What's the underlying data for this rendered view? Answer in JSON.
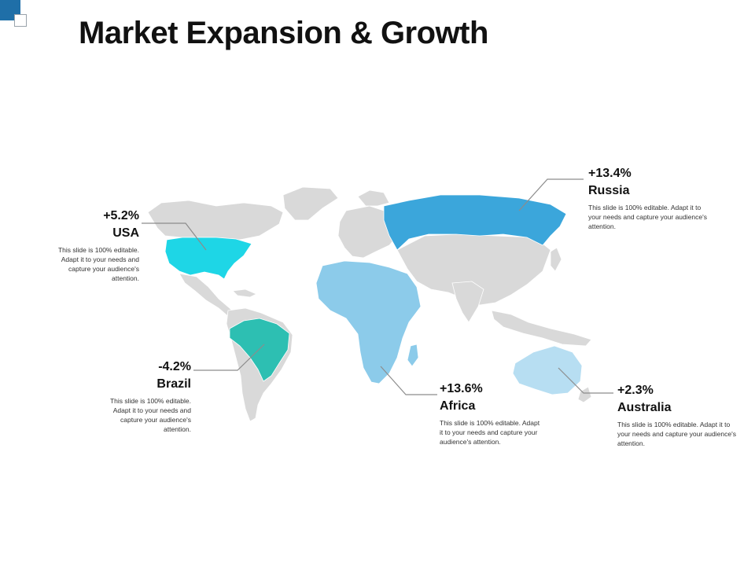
{
  "page": {
    "title": "Market Expansion & Growth"
  },
  "colors": {
    "land": "#d9d9d9",
    "usa": "#1ed6e6",
    "brazil": "#2dbfb2",
    "africa": "#8ccbea",
    "russia": "#3ba6db",
    "australia": "#b7def2",
    "leader": "#8c8c8c",
    "accent": "#1f6fa8"
  },
  "regions": [
    {
      "id": "usa",
      "change": "+5.2%",
      "name": "USA",
      "description": "This slide is 100% editable. Adapt it to your needs and capture your audience's attention."
    },
    {
      "id": "brazil",
      "change": "-4.2%",
      "name": "Brazil",
      "description": "This slide is 100% editable. Adapt it to your needs and capture your audience's attention."
    },
    {
      "id": "africa",
      "change": "+13.6%",
      "name": "Africa",
      "description": "This slide is 100% editable. Adapt it to your needs and capture your audience's attention."
    },
    {
      "id": "russia",
      "change": "+13.4%",
      "name": "Russia",
      "description": "This slide is 100% editable. Adapt it to your needs and capture your audience's attention."
    },
    {
      "id": "australia",
      "change": "+2.3%",
      "name": "Australia",
      "description": "This slide is 100% editable. Adapt it to your needs and capture your audience's attention."
    }
  ]
}
